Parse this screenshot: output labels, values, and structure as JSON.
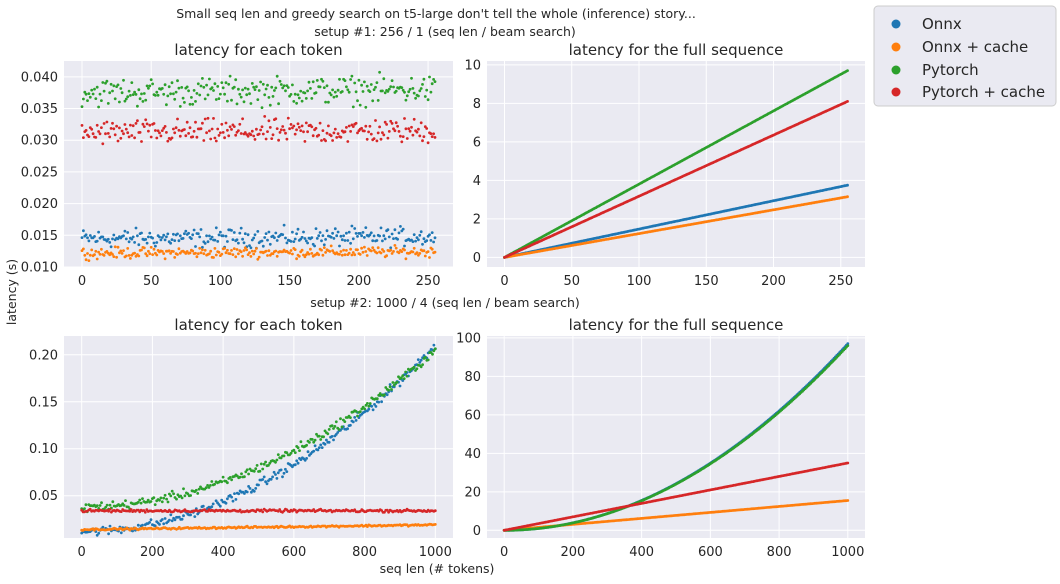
{
  "figure": {
    "suptitle": "Small seq len and greedy search on t5-large don't tell the whole (inference) story...",
    "setup1_label": "setup #1: 256 / 1 (seq len / beam search)",
    "setup2_label": "setup #2: 1000 / 4 (seq len / beam search)",
    "ylabel": "latency (s)",
    "xlabel": "seq len (# tokens)"
  },
  "legend": {
    "items": [
      {
        "label": "Onnx",
        "color": "#1f77b4"
      },
      {
        "label": "Onnx + cache",
        "color": "#ff7f0e"
      },
      {
        "label": "Pytorch",
        "color": "#2ca02c"
      },
      {
        "label": "Pytorch + cache",
        "color": "#d62728"
      }
    ]
  },
  "chart_data": [
    {
      "type": "scatter",
      "title": "latency for each token",
      "setup": "setup #1",
      "xlim": [
        -13,
        268
      ],
      "ylim": [
        0.01,
        0.0425
      ],
      "xticks": [
        0,
        50,
        100,
        150,
        200,
        250
      ],
      "yticks": [
        0.01,
        0.015,
        0.02,
        0.025,
        0.03,
        0.035,
        0.04
      ],
      "yticklabels": [
        "0.010",
        "0.015",
        "0.020",
        "0.025",
        "0.030",
        "0.035",
        "0.040"
      ],
      "x": {
        "start": 0,
        "end": 255,
        "step": 1
      },
      "series": [
        {
          "name": "Onnx",
          "color": "#1f77b4",
          "trend": "flat",
          "start": 0.0145,
          "end": 0.0148,
          "noise": 0.0012
        },
        {
          "name": "Onnx + cache",
          "color": "#ff7f0e",
          "trend": "flat",
          "start": 0.0122,
          "end": 0.0124,
          "noise": 0.0007
        },
        {
          "name": "Pytorch",
          "color": "#2ca02c",
          "trend": "flat",
          "start": 0.0375,
          "end": 0.038,
          "noise": 0.0018
        },
        {
          "name": "Pytorch + cache",
          "color": "#d62728",
          "trend": "flat",
          "start": 0.0312,
          "end": 0.0315,
          "noise": 0.0016
        }
      ]
    },
    {
      "type": "scatter",
      "title": "latency for the full sequence",
      "setup": "setup #1",
      "xlim": [
        -13,
        268
      ],
      "ylim": [
        -0.5,
        10.2
      ],
      "xticks": [
        0,
        50,
        100,
        150,
        200,
        250
      ],
      "yticks": [
        0,
        2,
        4,
        6,
        8,
        10
      ],
      "yticklabels": [
        "0",
        "2",
        "4",
        "6",
        "8",
        "10"
      ],
      "x": {
        "start": 0,
        "end": 255,
        "step": 1
      },
      "series": [
        {
          "name": "Onnx",
          "color": "#1f77b4",
          "trend": "linear",
          "start": 0,
          "end": 3.75,
          "noise": 0
        },
        {
          "name": "Onnx + cache",
          "color": "#ff7f0e",
          "trend": "linear",
          "start": 0,
          "end": 3.15,
          "noise": 0
        },
        {
          "name": "Pytorch",
          "color": "#2ca02c",
          "trend": "linear",
          "start": 0,
          "end": 9.7,
          "noise": 0
        },
        {
          "name": "Pytorch + cache",
          "color": "#d62728",
          "trend": "linear",
          "start": 0,
          "end": 8.1,
          "noise": 0
        }
      ]
    },
    {
      "type": "scatter",
      "title": "latency for each token",
      "setup": "setup #2",
      "xlim": [
        -50,
        1050
      ],
      "ylim": [
        0.005,
        0.22
      ],
      "xticks": [
        0,
        200,
        400,
        600,
        800,
        1000
      ],
      "yticks": [
        0.05,
        0.1,
        0.15,
        0.2
      ],
      "yticklabels": [
        "0.05",
        "0.10",
        "0.15",
        "0.20"
      ],
      "x": {
        "start": 0,
        "end": 1000,
        "step": 4
      },
      "series": [
        {
          "name": "Onnx",
          "color": "#1f77b4",
          "trend": "power",
          "start": 0.012,
          "end": 0.21,
          "noise": 0.004
        },
        {
          "name": "Onnx + cache",
          "color": "#ff7f0e",
          "trend": "linear",
          "start": 0.014,
          "end": 0.019,
          "noise": 0.0008
        },
        {
          "name": "Pytorch",
          "color": "#2ca02c",
          "trend": "power",
          "start": 0.038,
          "end": 0.205,
          "noise": 0.004
        },
        {
          "name": "Pytorch + cache",
          "color": "#d62728",
          "trend": "flat",
          "start": 0.034,
          "end": 0.034,
          "noise": 0.0012
        }
      ]
    },
    {
      "type": "scatter",
      "title": "latency for the full sequence",
      "setup": "setup #2",
      "xlim": [
        -50,
        1050
      ],
      "ylim": [
        -4,
        101
      ],
      "xticks": [
        0,
        200,
        400,
        600,
        800,
        1000
      ],
      "yticks": [
        0,
        20,
        40,
        60,
        80,
        100
      ],
      "yticklabels": [
        "0",
        "20",
        "40",
        "60",
        "80",
        "100"
      ],
      "x": {
        "start": 0,
        "end": 1000,
        "step": 4
      },
      "series": [
        {
          "name": "Onnx",
          "color": "#1f77b4",
          "trend": "power",
          "start": 0,
          "end": 97,
          "noise": 0
        },
        {
          "name": "Onnx + cache",
          "color": "#ff7f0e",
          "trend": "linear",
          "start": 0,
          "end": 15.5,
          "noise": 0
        },
        {
          "name": "Pytorch",
          "color": "#2ca02c",
          "trend": "power",
          "start": 0,
          "end": 96,
          "noise": 0
        },
        {
          "name": "Pytorch + cache",
          "color": "#d62728",
          "trend": "linear",
          "start": 0,
          "end": 35,
          "noise": 0
        }
      ]
    }
  ]
}
